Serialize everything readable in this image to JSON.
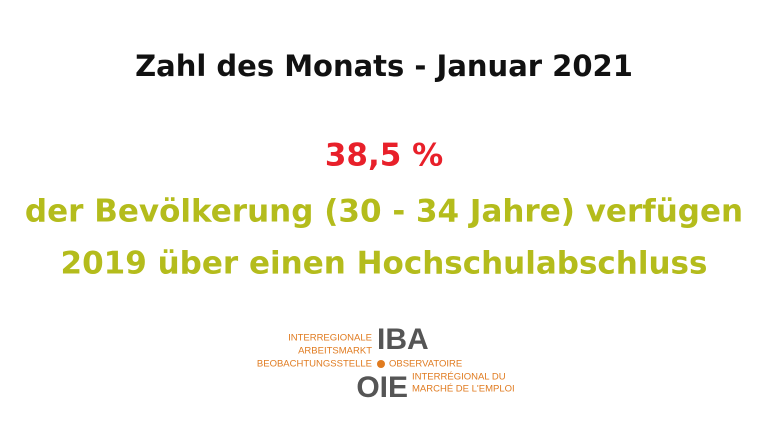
{
  "header": {
    "title": "Zahl des Monats - Januar 2021"
  },
  "highlight": {
    "value": "38,5 %",
    "lines": [
      "der Bevölkerung (30 - 34 Jahre) verfügen",
      "2019 über einen Hochschulabschluss"
    ]
  },
  "logo": {
    "left_lines": [
      "INTERREGIONALE",
      "ARBEITSMARKT",
      "BEOBACHTUNGSSTELLE"
    ],
    "top_acronym": "IBA",
    "right_lines": [
      "OBSERVATOIRE",
      "INTERRÉGIONAL DU",
      "MARCHÉ DE L'EMPLOI"
    ],
    "bottom_acronym": "OIE"
  }
}
